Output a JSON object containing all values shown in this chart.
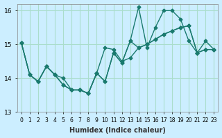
{
  "xlabel": "Humidex (Indice chaleur)",
  "ylabel": "",
  "xlim": [
    -0.5,
    23.5
  ],
  "ylim": [
    13,
    16.2
  ],
  "yticks": [
    13,
    14,
    15,
    16
  ],
  "xtick_labels": [
    "0",
    "1",
    "2",
    "3",
    "4",
    "5",
    "6",
    "7",
    "8",
    "9",
    "10",
    "11",
    "12",
    "13",
    "14",
    "15",
    "16",
    "17",
    "18",
    "19",
    "20",
    "21",
    "22",
    "23"
  ],
  "bg_color": "#cceeff",
  "grid_color": "#aaddcc",
  "line_color": "#1a7a6e",
  "lines": [
    [
      15.05,
      14.1,
      13.9,
      14.35,
      14.1,
      13.8,
      13.65,
      13.65,
      13.55,
      14.15,
      13.9,
      14.75,
      14.45,
      15.1,
      16.1,
      14.9,
      15.5,
      16.0,
      16.0,
      15.75,
      15.1,
      14.75,
      15.1,
      14.85
    ],
    [
      15.05,
      14.1,
      13.9,
      14.35,
      14.1,
      13.8,
      13.65,
      13.65,
      13.55,
      14.15,
      14.9,
      14.85,
      14.5,
      14.6,
      14.9,
      15.0,
      15.15,
      15.3,
      15.4,
      15.5,
      15.55,
      14.75,
      14.85,
      14.85
    ],
    [
      15.05,
      14.1,
      13.9,
      14.35,
      14.1,
      14.0,
      13.65,
      13.65,
      13.55,
      14.15,
      13.9,
      14.75,
      14.45,
      15.1,
      14.9,
      15.0,
      15.15,
      15.3,
      15.4,
      15.5,
      15.55,
      14.75,
      14.85,
      14.85
    ]
  ]
}
